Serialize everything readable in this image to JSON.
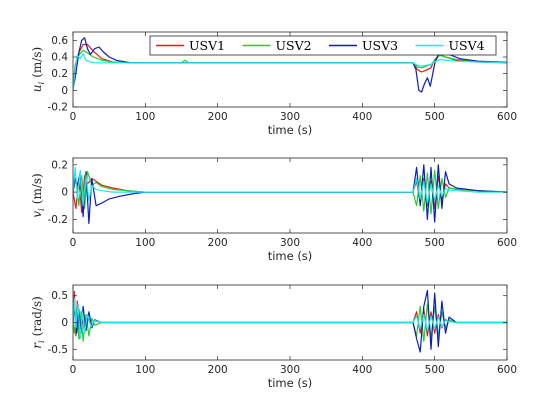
{
  "chart_data": [
    {
      "type": "line",
      "ylabel_var": "u",
      "ylabel_sub": "i",
      "ylabel_unit": "(m/s)",
      "xlabel": "time (s)",
      "xlim": [
        0,
        600
      ],
      "ylim": [
        -0.2,
        0.7
      ],
      "xticks": [
        "0",
        "100",
        "200",
        "300",
        "400",
        "500",
        "600"
      ],
      "yticks": [
        "-0.2",
        "0",
        "0.2",
        "0.4",
        "0.6"
      ],
      "ytick_values": [
        -0.2,
        0,
        0.2,
        0.4,
        0.6
      ],
      "legend": {
        "placement": "top-right",
        "entries": [
          "USV1",
          "USV2",
          "USV3",
          "USV4"
        ]
      },
      "series": [
        {
          "name": "USV1",
          "color": "#e31a1c",
          "x": [
            0,
            3,
            8,
            14,
            20,
            28,
            40,
            55,
            80,
            150,
            300,
            470,
            476,
            482,
            488,
            495,
            500,
            507,
            515,
            530,
            560,
            600
          ],
          "y": [
            0.02,
            0.3,
            0.45,
            0.55,
            0.55,
            0.47,
            0.38,
            0.34,
            0.33,
            0.33,
            0.33,
            0.33,
            0.25,
            0.22,
            0.24,
            0.27,
            0.37,
            0.43,
            0.4,
            0.36,
            0.34,
            0.33
          ]
        },
        {
          "name": "USV2",
          "color": "#22d02c",
          "x": [
            0,
            3,
            8,
            14,
            20,
            28,
            40,
            55,
            80,
            150,
            155,
            160,
            300,
            470,
            476,
            482,
            488,
            495,
            500,
            507,
            515,
            530,
            560,
            600
          ],
          "y": [
            0.02,
            0.28,
            0.42,
            0.48,
            0.45,
            0.4,
            0.36,
            0.34,
            0.33,
            0.33,
            0.36,
            0.33,
            0.33,
            0.33,
            0.28,
            0.27,
            0.29,
            0.31,
            0.36,
            0.42,
            0.4,
            0.37,
            0.35,
            0.34
          ]
        },
        {
          "name": "USV3",
          "color": "#0a1fb8",
          "x": [
            0,
            3,
            8,
            12,
            16,
            20,
            24,
            30,
            36,
            42,
            50,
            60,
            80,
            150,
            300,
            470,
            474,
            478,
            482,
            486,
            490,
            494,
            500,
            506,
            512,
            520,
            535,
            560,
            600
          ],
          "y": [
            0.02,
            0.15,
            0.45,
            0.6,
            0.63,
            0.5,
            0.43,
            0.5,
            0.52,
            0.46,
            0.4,
            0.36,
            0.33,
            0.33,
            0.33,
            0.33,
            0.25,
            0.0,
            -0.02,
            0.08,
            0.15,
            0.05,
            0.32,
            0.45,
            0.48,
            0.43,
            0.38,
            0.35,
            0.33
          ]
        },
        {
          "name": "USV4",
          "color": "#1ee6f2",
          "x": [
            0,
            3,
            6,
            10,
            14,
            18,
            24,
            30,
            40,
            55,
            80,
            150,
            300,
            470,
            476,
            482,
            488,
            495,
            500,
            507,
            515,
            530,
            560,
            600
          ],
          "y": [
            0.0,
            0.25,
            0.42,
            0.38,
            0.44,
            0.36,
            0.34,
            0.33,
            0.33,
            0.33,
            0.33,
            0.33,
            0.33,
            0.33,
            0.3,
            0.29,
            0.3,
            0.31,
            0.34,
            0.37,
            0.36,
            0.35,
            0.34,
            0.33
          ]
        }
      ]
    },
    {
      "type": "line",
      "ylabel_var": "v",
      "ylabel_sub": "i",
      "ylabel_unit": "(m/s)",
      "xlabel": "time (s)",
      "xlim": [
        0,
        600
      ],
      "ylim": [
        -0.3,
        0.25
      ],
      "xticks": [
        "0",
        "100",
        "200",
        "300",
        "400",
        "500",
        "600"
      ],
      "yticks": [
        "-0.2",
        "0",
        "0.2"
      ],
      "ytick_values": [
        -0.2,
        0,
        0.2
      ],
      "series": [
        {
          "name": "USV1",
          "color": "#e31a1c",
          "x": [
            0,
            4,
            8,
            12,
            16,
            20,
            26,
            32,
            40,
            55,
            75,
            100,
            150,
            300,
            470,
            475,
            480,
            485,
            490,
            495,
            500,
            505,
            510,
            515,
            520,
            530,
            560,
            600
          ],
          "y": [
            0.0,
            -0.12,
            0.1,
            -0.15,
            0.12,
            0.06,
            0.1,
            0.08,
            0.05,
            0.03,
            0.01,
            0.0,
            0.0,
            0.0,
            0.0,
            0.08,
            -0.08,
            0.1,
            -0.1,
            0.08,
            -0.12,
            0.12,
            -0.06,
            0.06,
            0.03,
            0.02,
            0.01,
            0.0
          ]
        },
        {
          "name": "USV2",
          "color": "#22d02c",
          "x": [
            0,
            4,
            8,
            12,
            16,
            20,
            26,
            32,
            40,
            55,
            75,
            100,
            150,
            300,
            470,
            475,
            480,
            485,
            490,
            495,
            500,
            505,
            510,
            515,
            520,
            530,
            560,
            600
          ],
          "y": [
            0.0,
            0.1,
            -0.1,
            0.12,
            -0.12,
            0.15,
            0.05,
            0.07,
            0.04,
            0.02,
            0.01,
            0.0,
            0.0,
            0.0,
            0.0,
            -0.1,
            0.12,
            -0.14,
            0.14,
            -0.16,
            0.16,
            -0.12,
            0.1,
            -0.04,
            0.03,
            0.02,
            0.01,
            0.0
          ]
        },
        {
          "name": "USV3",
          "color": "#0a1fb8",
          "x": [
            0,
            3,
            6,
            10,
            14,
            18,
            22,
            26,
            32,
            40,
            50,
            65,
            85,
            100,
            150,
            300,
            470,
            475,
            480,
            485,
            490,
            495,
            500,
            505,
            510,
            515,
            520,
            530,
            560,
            600
          ],
          "y": [
            0.0,
            0.1,
            0.05,
            0.14,
            -0.18,
            0.15,
            -0.23,
            0.1,
            -0.1,
            -0.08,
            -0.05,
            -0.03,
            -0.01,
            0.0,
            0.0,
            0.0,
            0.0,
            0.18,
            -0.1,
            0.2,
            -0.2,
            0.18,
            -0.22,
            0.2,
            -0.12,
            0.15,
            0.06,
            0.03,
            0.01,
            0.0
          ]
        },
        {
          "name": "USV4",
          "color": "#1ee6f2",
          "x": [
            0,
            3,
            6,
            10,
            14,
            18,
            22,
            26,
            32,
            40,
            55,
            75,
            100,
            150,
            300,
            470,
            475,
            480,
            485,
            490,
            495,
            500,
            505,
            510,
            515,
            520,
            530,
            560,
            600
          ],
          "y": [
            0.0,
            0.18,
            -0.05,
            0.16,
            -0.1,
            0.12,
            -0.06,
            0.05,
            0.02,
            0.01,
            0.0,
            0.0,
            0.0,
            0.0,
            0.0,
            0.0,
            0.1,
            -0.05,
            0.08,
            -0.08,
            0.06,
            -0.06,
            0.05,
            -0.03,
            0.03,
            0.01,
            0.01,
            0.0,
            0.0
          ]
        }
      ]
    },
    {
      "type": "line",
      "ylabel_var": "r",
      "ylabel_sub": "i",
      "ylabel_unit": "(rad/s)",
      "xlabel": "time (s)",
      "xlim": [
        0,
        600
      ],
      "ylim": [
        -0.7,
        0.7
      ],
      "xticks": [
        "0",
        "100",
        "200",
        "300",
        "400",
        "500",
        "600"
      ],
      "yticks": [
        "-0.5",
        "0",
        "0.5"
      ],
      "ytick_values": [
        -0.5,
        0,
        0.5
      ],
      "series": [
        {
          "name": "USV1",
          "color": "#e31a1c",
          "x": [
            0,
            2,
            4,
            6,
            9,
            12,
            16,
            20,
            25,
            30,
            40,
            60,
            100,
            300,
            470,
            475,
            480,
            485,
            490,
            495,
            500,
            505,
            510,
            515,
            520,
            530,
            560,
            600
          ],
          "y": [
            0.0,
            0.58,
            -0.25,
            0.4,
            -0.3,
            0.2,
            -0.2,
            0.1,
            -0.05,
            0.03,
            0.0,
            0.0,
            0.0,
            0.0,
            0.0,
            0.2,
            -0.2,
            0.25,
            -0.25,
            0.2,
            -0.2,
            0.15,
            -0.1,
            0.05,
            0.02,
            0.0,
            0.0,
            0.0
          ]
        },
        {
          "name": "USV2",
          "color": "#22d02c",
          "x": [
            0,
            2,
            5,
            8,
            11,
            14,
            18,
            22,
            26,
            30,
            40,
            60,
            100,
            300,
            470,
            475,
            480,
            485,
            490,
            495,
            500,
            505,
            510,
            515,
            520,
            530,
            560,
            600
          ],
          "y": [
            0.0,
            -0.2,
            0.25,
            -0.3,
            0.2,
            -0.35,
            0.15,
            -0.25,
            0.08,
            -0.05,
            0.0,
            0.0,
            0.0,
            0.0,
            0.0,
            -0.25,
            0.3,
            -0.35,
            0.35,
            -0.3,
            0.3,
            -0.25,
            0.2,
            -0.1,
            0.05,
            0.0,
            0.0,
            0.0
          ]
        },
        {
          "name": "USV3",
          "color": "#0a1fb8",
          "x": [
            0,
            2,
            5,
            8,
            11,
            14,
            18,
            22,
            26,
            30,
            40,
            60,
            100,
            300,
            470,
            475,
            480,
            485,
            490,
            495,
            500,
            505,
            510,
            515,
            520,
            530,
            560,
            600
          ],
          "y": [
            0.0,
            0.3,
            -0.2,
            0.25,
            -0.2,
            0.3,
            -0.15,
            0.2,
            -0.1,
            0.05,
            0.0,
            0.0,
            0.0,
            0.0,
            0.0,
            -0.3,
            -0.55,
            0.3,
            0.6,
            -0.5,
            0.55,
            -0.45,
            0.4,
            -0.2,
            0.1,
            0.0,
            0.0,
            0.0
          ]
        },
        {
          "name": "USV4",
          "color": "#1ee6f2",
          "x": [
            0,
            2,
            4,
            7,
            10,
            13,
            16,
            20,
            25,
            30,
            40,
            60,
            100,
            300,
            470,
            475,
            480,
            485,
            490,
            495,
            500,
            505,
            510,
            515,
            520,
            530,
            560,
            600
          ],
          "y": [
            0.0,
            0.45,
            -0.1,
            0.35,
            -0.3,
            0.2,
            -0.2,
            0.15,
            -0.08,
            0.04,
            0.0,
            0.0,
            0.0,
            0.0,
            0.0,
            0.12,
            -0.12,
            0.15,
            -0.15,
            0.12,
            -0.12,
            0.1,
            -0.08,
            0.04,
            0.02,
            0.0,
            0.0,
            0.0
          ]
        }
      ]
    }
  ]
}
